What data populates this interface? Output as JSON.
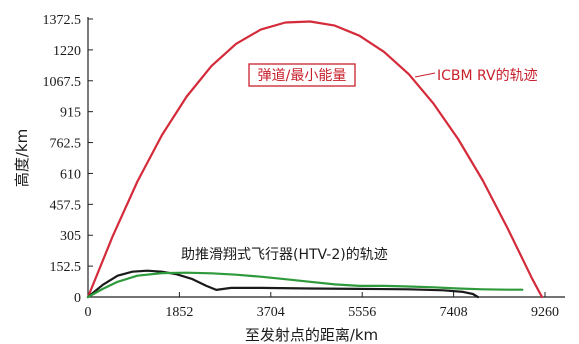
{
  "chart_data": {
    "type": "line",
    "title": "",
    "xlabel": "至发射点的距离/km",
    "ylabel": "高度/km",
    "xlim": [
      0,
      9260
    ],
    "ylim": [
      0,
      1372.5
    ],
    "xticks": [
      0,
      1852,
      3704,
      5556,
      7408,
      9260
    ],
    "xtick_labels": [
      "0",
      "1852",
      "3704",
      "5556",
      "7408",
      "9260"
    ],
    "yticks": [
      0,
      152.5,
      305,
      457.5,
      610,
      762.5,
      915,
      1067.5,
      1220,
      1372.5
    ],
    "ytick_labels": [
      "0",
      "152.5",
      "305",
      "457.5",
      "610",
      "762.5",
      "915",
      "1067.5",
      "1220",
      "1372.5"
    ],
    "grid": false,
    "series": [
      {
        "name": "ICBM RV的轨迹",
        "color": "#d42a3a",
        "x": [
          0,
          500,
          1000,
          1500,
          2000,
          2500,
          3000,
          3500,
          4000,
          4500,
          5000,
          5500,
          6000,
          6500,
          7000,
          7500,
          8000,
          8500,
          9000,
          9200
        ],
        "y": [
          0,
          300,
          570,
          800,
          990,
          1140,
          1250,
          1320,
          1355,
          1360,
          1340,
          1290,
          1210,
          1100,
          955,
          780,
          575,
          340,
          90,
          0
        ]
      },
      {
        "name": "助推滑翔式飞行器(HTV-2)的轨迹",
        "color": "#1a1a1a",
        "x": [
          0,
          300,
          600,
          900,
          1200,
          1500,
          1800,
          2100,
          2400,
          2600,
          2900,
          3500,
          4500,
          5500,
          6500,
          7200,
          7600,
          7800,
          7900
        ],
        "y": [
          0,
          60,
          105,
          125,
          130,
          125,
          112,
          90,
          55,
          35,
          45,
          45,
          42,
          40,
          38,
          33,
          25,
          15,
          0
        ]
      },
      {
        "name": "",
        "color": "#2e9a3c",
        "x": [
          0,
          300,
          600,
          1000,
          1500,
          2000,
          2500,
          3000,
          3500,
          4000,
          4500,
          5000,
          5500,
          6000,
          6500,
          7000,
          7500,
          8000,
          8500,
          8800
        ],
        "y": [
          0,
          40,
          75,
          105,
          118,
          120,
          117,
          110,
          100,
          88,
          75,
          62,
          55,
          55,
          52,
          48,
          42,
          38,
          36,
          36
        ]
      }
    ],
    "annotations": [
      {
        "text": "弹道/最小能量",
        "color": "#c8202c",
        "boxed": true
      },
      {
        "text": "ICBM RV的轨迹",
        "color": "#c8202c"
      },
      {
        "text": "助推滑翔式飞行器(HTV-2)的轨迹",
        "color": "#1a1a1a"
      }
    ]
  }
}
